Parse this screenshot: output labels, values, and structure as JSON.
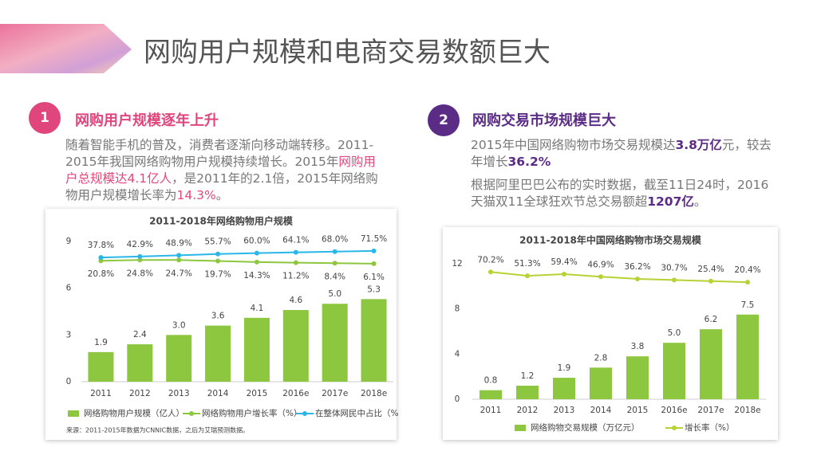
{
  "title": "网购用户规模和电商交易数额巨大",
  "sections": [
    {
      "number": "1",
      "heading": "网购用户规模逐年上升",
      "paragraphs": [
        [
          {
            "text": "随着智能手机的普及，消费者逐渐向移动端转移。2011-2015年我国网络购物用户规模持续增长。2015年",
            "emphasis": false
          },
          {
            "text": "网购用户总规模达4.1亿人",
            "emphasis": true
          },
          {
            "text": "，是2011年的2.1倍，2015年网络购物用户规模增长率为",
            "emphasis": false
          },
          {
            "text": "14.3%",
            "emphasis": true
          },
          {
            "text": "。",
            "emphasis": false
          }
        ]
      ]
    },
    {
      "number": "2",
      "heading": "网购交易市场规模巨大",
      "paragraphs": [
        [
          {
            "text": "2015年中国网络购物市场交易规模达",
            "emphasis": false
          },
          {
            "text": "3.8万亿",
            "emphasis": true
          },
          {
            "text": "元，较去年增长",
            "emphasis": false
          },
          {
            "text": "36.2%",
            "emphasis": true
          }
        ],
        [
          {
            "text": "根据阿里巴巴公布的实时数据，截至11日24时，2016天猫双11全球狂欢节总交易额超",
            "emphasis": false
          },
          {
            "text": "1207亿",
            "emphasis": true
          },
          {
            "text": "。",
            "emphasis": false
          }
        ]
      ]
    }
  ],
  "chart_data": [
    {
      "type": "bar",
      "title": "2011-2018年网络购物用户规模",
      "categories": [
        "2011",
        "2012",
        "2013",
        "2014",
        "2015",
        "2016e",
        "2017e",
        "2018e"
      ],
      "series": [
        {
          "name": "网络购物用户规模（亿人）",
          "type": "bar",
          "color": "#8dc63f",
          "values": [
            1.9,
            2.4,
            3.0,
            3.6,
            4.1,
            4.6,
            5.0,
            5.3
          ],
          "value_labels": [
            "1.9",
            "2.4",
            "3.0",
            "3.6",
            "4.1",
            "4.6",
            "5.0",
            "5.3"
          ]
        },
        {
          "name": "网络购物用户增长率（%）",
          "type": "line",
          "axis": "y2",
          "color": "#8dc63f",
          "values": [
            20.8,
            24.8,
            24.7,
            19.7,
            14.3,
            11.2,
            8.4,
            6.1
          ],
          "value_labels": [
            "20.8%",
            "24.8%",
            "24.7%",
            "19.7%",
            "14.3%",
            "11.2%",
            "8.4%",
            "6.1%"
          ]
        },
        {
          "name": "在整体网民中占比（%",
          "type": "line",
          "axis": "y2",
          "color": "#29b6e8",
          "values": [
            37.8,
            42.9,
            48.9,
            55.7,
            60.0,
            64.1,
            68.0,
            71.5
          ],
          "value_labels": [
            "37.8%",
            "42.9%",
            "48.9%",
            "55.7%",
            "60.0%",
            "64.1%",
            "68.0%",
            "71.5%"
          ]
        }
      ],
      "ylim": [
        0,
        9
      ],
      "yticks": [
        0,
        3,
        6,
        9
      ],
      "y2lim": [
        -600,
        120
      ],
      "grid": false,
      "source": "来源：2011-2015年数据为CNNIC数据，之后为艾瑞预测数据。"
    },
    {
      "type": "bar",
      "title": "2011-2018年中国网络购物市场交易规模",
      "categories": [
        "2011",
        "2012",
        "2013",
        "2014",
        "2015",
        "2016e",
        "2017e",
        "2018e"
      ],
      "series": [
        {
          "name": "网络购物交易规模（万亿元）",
          "type": "bar",
          "color": "#8dc63f",
          "values": [
            0.8,
            1.2,
            1.9,
            2.8,
            3.8,
            5.0,
            6.2,
            7.5
          ],
          "value_labels": [
            "0.8",
            "1.2",
            "1.9",
            "2.8",
            "3.8",
            "5.0",
            "6.2",
            "7.5"
          ]
        },
        {
          "name": "增长率（%）",
          "type": "line",
          "axis": "y2",
          "color": "#b5d334",
          "values": [
            70.2,
            51.3,
            59.4,
            46.9,
            36.2,
            30.7,
            25.4,
            20.4
          ],
          "value_labels": [
            "70.2%",
            "51.3%",
            "59.4%",
            "46.9%",
            "36.2%",
            "30.7%",
            "25.4%",
            "20.4%"
          ]
        }
      ],
      "ylim": [
        0,
        12
      ],
      "yticks": [
        0,
        4,
        8,
        12
      ],
      "y2lim": [
        -550,
        110
      ],
      "grid": false
    }
  ]
}
